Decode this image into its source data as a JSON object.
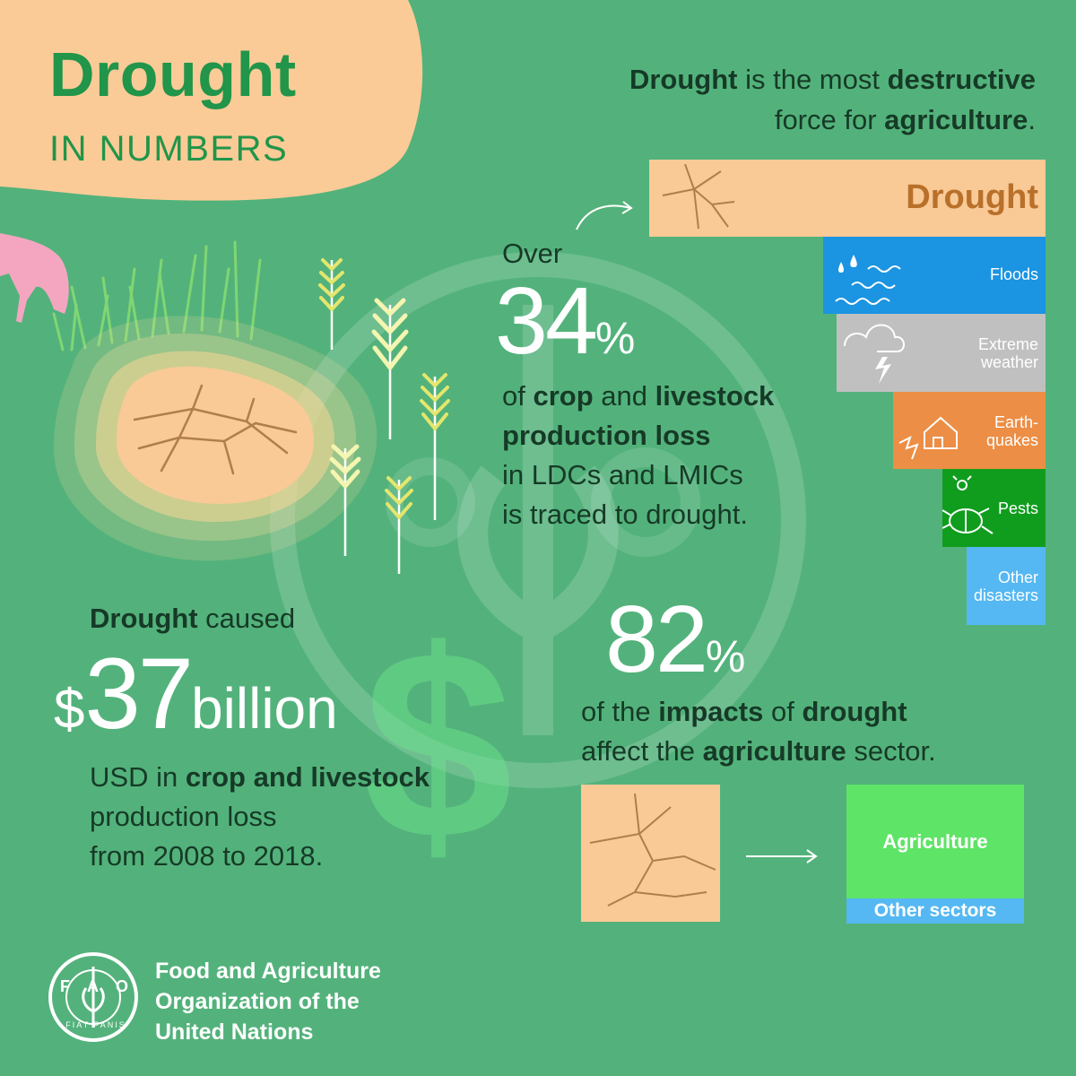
{
  "title": {
    "main": "Drought",
    "sub": "IN NUMBERS"
  },
  "headline": {
    "part1_bold": "Drought",
    "part2": " is the most ",
    "part3_bold": "destructive",
    "part4": "force for ",
    "part5_bold": "agriculture",
    "part6": "."
  },
  "disasters": [
    {
      "label": "Drought",
      "color": "#f9c996",
      "text_color": "#b8702a",
      "icon": "cracked-soil-icon"
    },
    {
      "label": "Floods",
      "color": "#1b94e2",
      "text_color": "#ffffff",
      "icon": "water-waves-icon"
    },
    {
      "label_line1": "Extreme",
      "label_line2": "weather",
      "color": "#c0c0c0",
      "text_color": "#ffffff",
      "icon": "storm-cloud-icon"
    },
    {
      "label_line1": "Earth-",
      "label_line2": "quakes",
      "color": "#ec8e45",
      "text_color": "#ffffff",
      "icon": "house-crack-icon"
    },
    {
      "label": "Pests",
      "color": "#109d1e",
      "text_color": "#ffffff",
      "icon": "bug-icon"
    },
    {
      "label_line1": "Other",
      "label_line2": "disasters",
      "color": "#55b8f2",
      "text_color": "#ffffff",
      "icon": ""
    }
  ],
  "stat_34": {
    "prefix": "Over",
    "value": "34",
    "unit": "%",
    "line1_a": "of ",
    "line1_b": "crop",
    "line1_c": " and ",
    "line1_d": "livestock",
    "line2": "production loss",
    "line3": "in LDCs and LMICs",
    "line4": "is traced to drought."
  },
  "stat_37": {
    "lead_bold": "Drought",
    "lead": " caused",
    "currency": "$",
    "value": "37",
    "unit": "billion",
    "line1_a": "USD in ",
    "line1_b": "crop and livestock",
    "line2": "production loss",
    "line3": "from 2008 to 2018."
  },
  "stat_82": {
    "value": "82",
    "unit": "%",
    "line1_a": "of the ",
    "line1_b": "impacts",
    "line1_c": " of ",
    "line1_d": "drought",
    "line2_a": "affect the ",
    "line2_b": "agriculture",
    "line2_c": " sector.",
    "share_agriculture": 82,
    "box_agriculture": "Agriculture",
    "box_other": "Other sectors",
    "color_agriculture": "#5ee466",
    "color_other": "#55b8f2"
  },
  "org": {
    "logo_letters": "FAO",
    "logo_motto": "FIAT PANIS",
    "line1": "Food and Agriculture",
    "line2": "Organization of the",
    "line3": "United Nations"
  },
  "colors": {
    "background": "#53b27b",
    "title_blob": "#fbcb97",
    "title_text": "#21954a",
    "drought_tile": "#f9c996",
    "crack_line": "#b07e48"
  }
}
